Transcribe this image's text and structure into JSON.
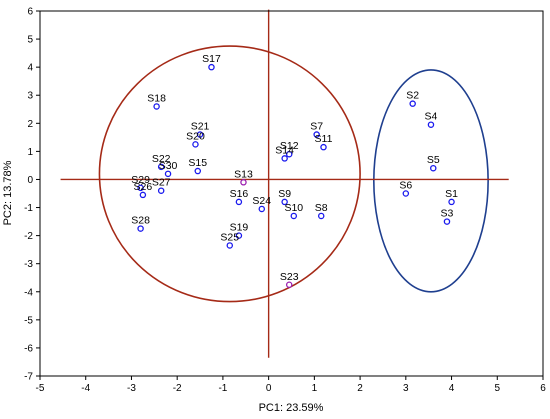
{
  "chart_data": {
    "type": "scatter",
    "xlabel": "PC1: 23.59%",
    "ylabel": "PC2: 13.78%",
    "xlim": [
      -5,
      6
    ],
    "ylim": [
      -7,
      6
    ],
    "xticks": [
      "-5",
      "-4",
      "-3",
      "-2",
      "-1",
      "0",
      "1",
      "2",
      "3",
      "4",
      "5",
      "6"
    ],
    "yticks": [
      "-7",
      "-6",
      "-5",
      "-4",
      "-3",
      "-2",
      "-1",
      "0",
      "1",
      "2",
      "3",
      "4",
      "5",
      "6"
    ],
    "grid": false,
    "points": [
      {
        "label": "S1",
        "x": 4.0,
        "y": -0.8
      },
      {
        "label": "S2",
        "x": 3.15,
        "y": 2.7
      },
      {
        "label": "S3",
        "x": 3.9,
        "y": -1.5
      },
      {
        "label": "S4",
        "x": 3.55,
        "y": 1.95
      },
      {
        "label": "S5",
        "x": 3.6,
        "y": 0.4
      },
      {
        "label": "S6",
        "x": 3.0,
        "y": -0.5
      },
      {
        "label": "S7",
        "x": 1.05,
        "y": 1.6
      },
      {
        "label": "S8",
        "x": 1.15,
        "y": -1.3
      },
      {
        "label": "S9",
        "x": 0.35,
        "y": -0.8
      },
      {
        "label": "S10",
        "x": 0.55,
        "y": -1.3
      },
      {
        "label": "S11",
        "x": 1.2,
        "y": 1.15
      },
      {
        "label": "S12",
        "x": 0.45,
        "y": 0.9
      },
      {
        "label": "S13",
        "x": -0.55,
        "y": -0.1
      },
      {
        "label": "S14",
        "x": 0.35,
        "y": 0.75
      },
      {
        "label": "S15",
        "x": -1.55,
        "y": 0.3
      },
      {
        "label": "S16",
        "x": -0.65,
        "y": -0.8
      },
      {
        "label": "S17",
        "x": -1.25,
        "y": 4.0
      },
      {
        "label": "S18",
        "x": -2.45,
        "y": 2.6
      },
      {
        "label": "S19",
        "x": -0.65,
        "y": -2.0
      },
      {
        "label": "S20",
        "x": -1.6,
        "y": 1.25
      },
      {
        "label": "S21",
        "x": -1.5,
        "y": 1.6
      },
      {
        "label": "S22",
        "x": -2.35,
        "y": 0.45
      },
      {
        "label": "S23",
        "x": 0.45,
        "y": -3.75
      },
      {
        "label": "S24",
        "x": -0.15,
        "y": -1.05
      },
      {
        "label": "S25",
        "x": -0.85,
        "y": -2.35
      },
      {
        "label": "S26",
        "x": -2.75,
        "y": -0.55
      },
      {
        "label": "S27",
        "x": -2.35,
        "y": -0.4
      },
      {
        "label": "S28",
        "x": -2.8,
        "y": -1.75
      },
      {
        "label": "S29",
        "x": -2.8,
        "y": -0.3
      },
      {
        "label": "S30",
        "x": -2.2,
        "y": 0.2
      }
    ],
    "annotations": {
      "ellipses": [
        {
          "color": "#a52a17",
          "center": [
            -0.85,
            0.2
          ],
          "radius_x": 2.85,
          "radius_y": 4.55
        },
        {
          "color": "#1f3f8f",
          "center": [
            3.55,
            -0.05
          ],
          "radius_x": 1.25,
          "radius_y": 3.95
        }
      ],
      "crosshair": {
        "color": "#a52a17",
        "x": 0,
        "y": 0,
        "x_extent": [
          -4.55,
          5.25
        ],
        "y_extent": [
          -6.35,
          6.05
        ]
      }
    },
    "colors": {
      "point": "#1a1aee",
      "point_alt": "#9b1fb0"
    }
  }
}
